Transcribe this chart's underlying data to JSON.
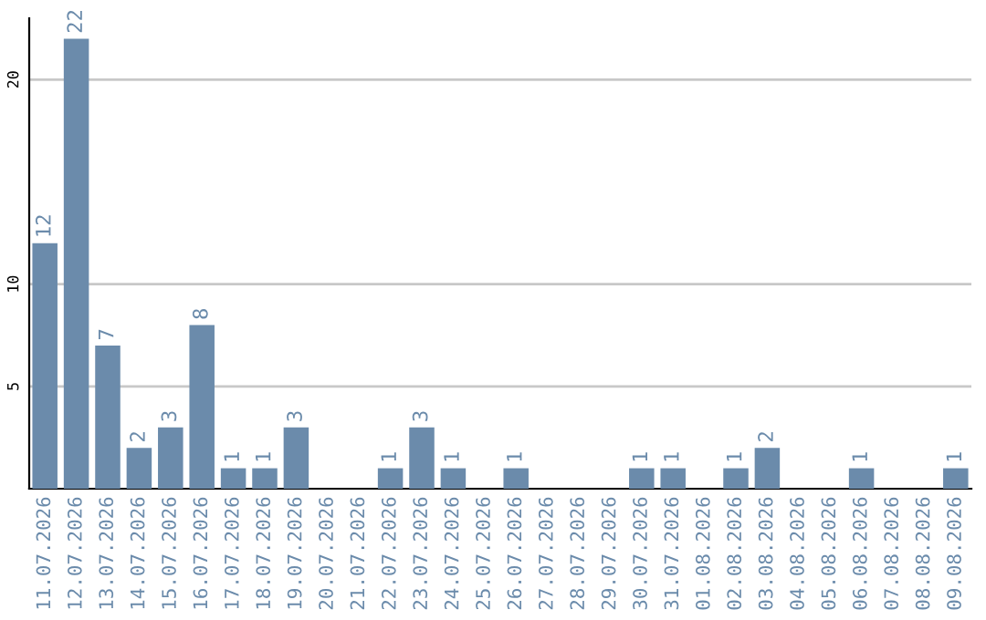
{
  "chart_data": {
    "type": "bar",
    "categories": [
      "11.07.2026",
      "12.07.2026",
      "13.07.2026",
      "14.07.2026",
      "15.07.2026",
      "16.07.2026",
      "17.07.2026",
      "18.07.2026",
      "19.07.2026",
      "20.07.2026",
      "21.07.2026",
      "22.07.2026",
      "23.07.2026",
      "24.07.2026",
      "25.07.2026",
      "26.07.2026",
      "27.07.2026",
      "28.07.2026",
      "29.07.2026",
      "30.07.2026",
      "31.07.2026",
      "01.08.2026",
      "02.08.2026",
      "03.08.2026",
      "04.08.2026",
      "05.08.2026",
      "06.08.2026",
      "07.08.2026",
      "08.08.2026",
      "09.08.2026"
    ],
    "values": [
      12,
      22,
      7,
      2,
      3,
      8,
      1,
      1,
      3,
      0,
      0,
      1,
      3,
      1,
      0,
      1,
      0,
      0,
      0,
      1,
      1,
      0,
      1,
      2,
      0,
      0,
      1,
      0,
      0,
      1
    ],
    "value_labels": [
      "12",
      "22",
      "7",
      "2",
      "3",
      "8",
      "1",
      "1",
      "3",
      null,
      null,
      "1",
      "3",
      "1",
      null,
      "1",
      null,
      null,
      null,
      "1",
      "1",
      null,
      "1",
      "2",
      null,
      null,
      "1",
      null,
      null,
      "1"
    ],
    "color": "#6b8bab",
    "ylim": [
      0,
      23
    ],
    "yticks": [
      5,
      10,
      20
    ],
    "grid": "y"
  }
}
